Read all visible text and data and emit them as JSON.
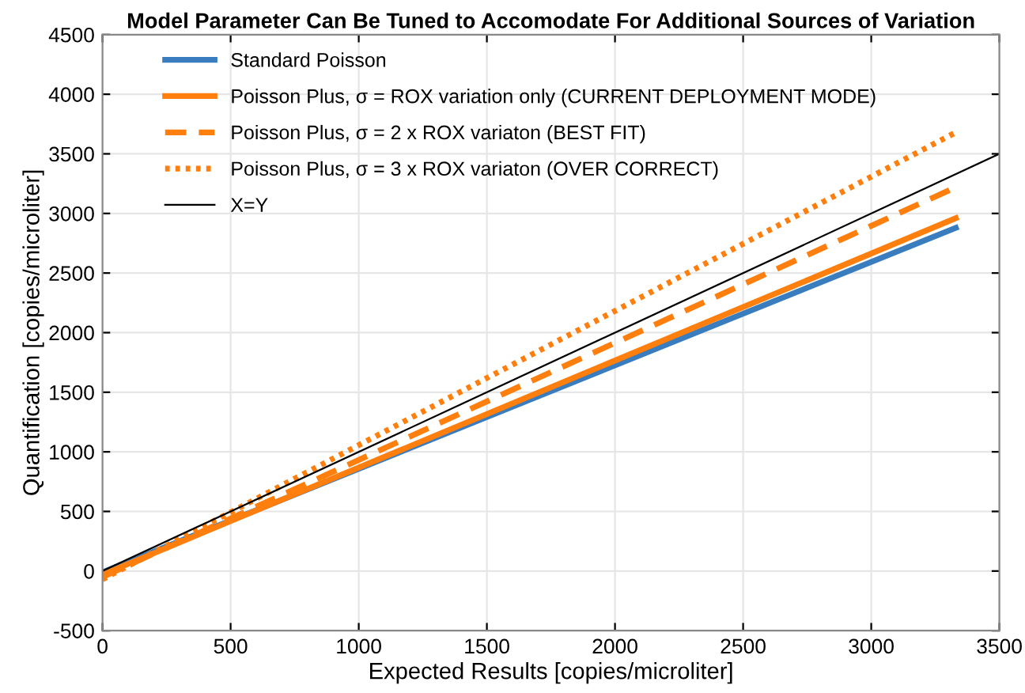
{
  "chart_data": {
    "type": "line",
    "title": "Model Parameter Can Be Tuned to Accomodate For Additional Sources of Variation",
    "xlabel": "Expected Results [copies/microliter]",
    "ylabel": "Quantification [copies/microliter]",
    "x": [
      0,
      3330
    ],
    "series": [
      {
        "name": "Standard Poisson",
        "color": "#3a7dbf",
        "values": [
          -10,
          2880
        ],
        "line_style": "solid"
      },
      {
        "name": "Poisson Plus, σ = ROX variation only (CURRENT DEPLOYMENT MODE)",
        "color": "#ff7f0e",
        "values": [
          -30,
          2960
        ],
        "line_style": "solid"
      },
      {
        "name": "Poisson Plus, σ = 2 x ROX variaton (BEST FIT)",
        "color": "#ff7f0e",
        "values": [
          -50,
          3220
        ],
        "line_style": "dashed"
      },
      {
        "name": "Poisson Plus, σ = 3 x ROX variaton (OVER CORRECT)",
        "color": "#ff7f0e",
        "values": [
          -70,
          3680
        ],
        "line_style": "dotted"
      },
      {
        "name": "X=Y",
        "color": "#000000",
        "values": [
          0,
          3500
        ],
        "x": [
          0,
          3500
        ],
        "line_style": "solid"
      }
    ],
    "xlim": [
      0,
      3500
    ],
    "xticks": [
      0,
      500,
      1000,
      1500,
      2000,
      2500,
      3000,
      3500
    ],
    "ylim": [
      -500,
      4500
    ],
    "yticks": [
      -500,
      0,
      500,
      1000,
      1500,
      2000,
      2500,
      3000,
      3500,
      4000,
      4500
    ],
    "grid": true,
    "legend": "top left"
  }
}
